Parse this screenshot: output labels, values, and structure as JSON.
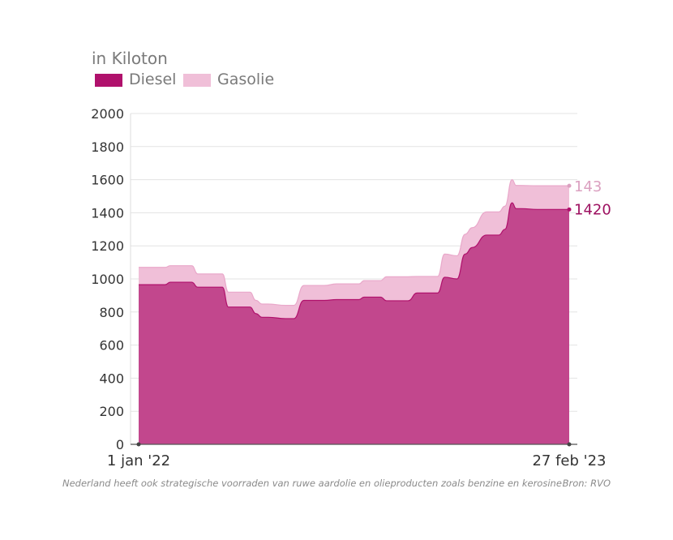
{
  "unit_label": "in Kiloton",
  "footnote": "Nederland heeft ook strategische voorraden van ruwe aardolie en olieproducten zoals benzine en kerosine",
  "source": "Bron: RVO",
  "colors": {
    "diesel": "#b0116c",
    "gasolie": "#f0bfd8",
    "diesel_label": "#9d1060",
    "gasolie_label": "#dba0c0",
    "grid": "#e3e3e3",
    "axis": "#555555"
  },
  "chart_data": {
    "type": "area",
    "stacked": true,
    "xlabel": "",
    "ylabel": "",
    "ylim": [
      0,
      2000
    ],
    "yticks": [
      "0",
      "200",
      "400",
      "600",
      "800",
      "1000",
      "1200",
      "1400",
      "1600",
      "1800",
      "2000"
    ],
    "x_tick_labels": [
      "1 jan '22",
      "27 feb '23"
    ],
    "x_domain": [
      "2022-01-01",
      "2023-02-27"
    ],
    "x": [
      "2022-01-01",
      "2022-01-27",
      "2022-02-01",
      "2022-02-22",
      "2022-02-28",
      "2022-03-24",
      "2022-03-30",
      "2022-04-20",
      "2022-04-26",
      "2022-05-02",
      "2022-05-08",
      "2022-05-25",
      "2022-06-02",
      "2022-06-12",
      "2022-07-02",
      "2022-07-14",
      "2022-08-05",
      "2022-08-10",
      "2022-08-26",
      "2022-09-01",
      "2022-09-22",
      "2022-10-01",
      "2022-10-21",
      "2022-10-28",
      "2022-11-09",
      "2022-11-17",
      "2022-11-24",
      "2022-12-08",
      "2022-12-14",
      "2022-12-20",
      "2022-12-26",
      "2023-01-02",
      "2023-01-06",
      "2023-01-11",
      "2023-01-27",
      "2023-02-02",
      "2023-02-08",
      "2023-02-12",
      "2023-02-17",
      "2023-02-27"
    ],
    "series": [
      {
        "name": "Diesel",
        "values": [
          965,
          965,
          980,
          980,
          950,
          950,
          830,
          830,
          790,
          768,
          768,
          760,
          760,
          870,
          870,
          875,
          875,
          890,
          890,
          868,
          868,
          915,
          915,
          1010,
          1000,
          1150,
          1190,
          1265,
          1265,
          1265,
          1300,
          1460,
          1425,
          1425,
          1420,
          1420,
          1420,
          1420,
          1420,
          1420
        ]
      },
      {
        "name": "Gasolie",
        "values": [
          105,
          105,
          100,
          100,
          80,
          80,
          90,
          90,
          80,
          80,
          80,
          80,
          80,
          90,
          90,
          95,
          95,
          100,
          100,
          145,
          145,
          100,
          100,
          140,
          140,
          120,
          120,
          140,
          140,
          140,
          140,
          140,
          140,
          140,
          143,
          143,
          143,
          143,
          143,
          143
        ]
      }
    ],
    "end_labels": {
      "diesel": "1420",
      "gasolie": "143"
    }
  }
}
